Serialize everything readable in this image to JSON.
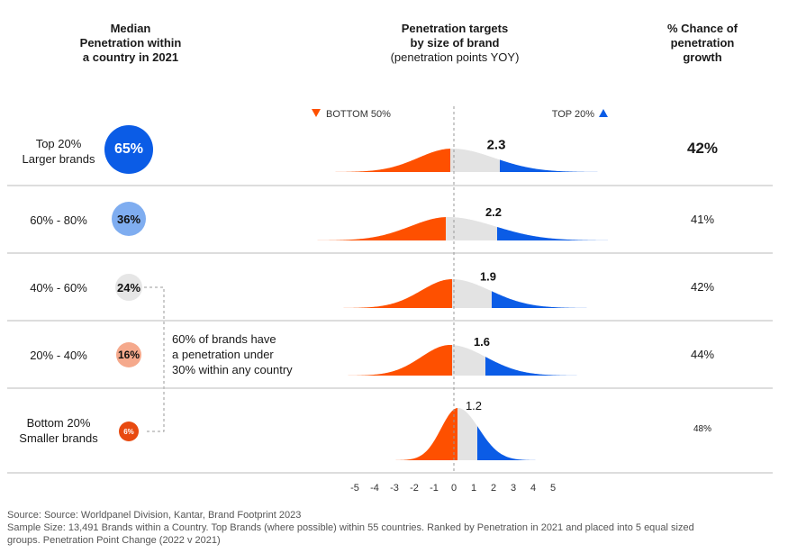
{
  "headers": {
    "left": [
      "Median",
      "Penetration within",
      "a country in 2021"
    ],
    "middle": [
      "Penetration targets",
      "by size of brand"
    ],
    "middle_sub": "(penetration points YOY)",
    "right": [
      "% Chance of",
      "penetration",
      "growth"
    ]
  },
  "legend": {
    "bottom_label": "BOTTOM 50%",
    "top_label": "TOP 20%"
  },
  "annotation": [
    "60% of brands have",
    "a penetration under",
    "30% within any country"
  ],
  "footer": {
    "line1": "Source: Source: Worldpanel Division, Kantar, Brand Footprint 2023",
    "line2": "Sample Size: 13,491 Brands within a Country. Top Brands (where possible) within 55 countries. Ranked by Penetration in 2021 and placed into 5 equal sized",
    "line3": "groups. Penetration Point Change (2022 v 2021)"
  },
  "colors": {
    "bottom": "#fe5000",
    "middle": "#e3e3e3",
    "top": "#0b5ce6",
    "bubble_1": "#0b5ce6",
    "bubble_2": "#7fadf0",
    "bubble_3": "#e6e6e6",
    "bubble_4": "#f5a98c",
    "bubble_5": "#e84a10",
    "divider": "#bbbbbb"
  },
  "chart_data": {
    "type": "area",
    "x_ticks": [
      "-5",
      "-4",
      "-3",
      "-2",
      "-1",
      "0",
      "1",
      "2",
      "3",
      "4",
      "5"
    ],
    "xlim": [
      -5,
      5
    ],
    "rows": [
      {
        "label": [
          "Top 20%",
          "Larger brands"
        ],
        "median_penetration": "65%",
        "median_value": 65,
        "bottom_cut": -0.2,
        "top_cut": 2.3,
        "target_label": "2.3",
        "chance": "42%",
        "chance_value": 42
      },
      {
        "label": [
          "60% - 80%"
        ],
        "median_penetration": "36%",
        "median_value": 36,
        "bottom_cut": -0.4,
        "top_cut": 2.2,
        "target_label": "2.2",
        "chance": "41%",
        "chance_value": 41
      },
      {
        "label": [
          "40% - 60%"
        ],
        "median_penetration": "24%",
        "median_value": 24,
        "bottom_cut": -0.1,
        "top_cut": 1.9,
        "target_label": "1.9",
        "chance": "42%",
        "chance_value": 42
      },
      {
        "label": [
          "20% - 40%"
        ],
        "median_penetration": "16%",
        "median_value": 16,
        "bottom_cut": -0.1,
        "top_cut": 1.6,
        "target_label": "1.6",
        "chance": "44%",
        "chance_value": 44
      },
      {
        "label": [
          "Bottom 20%",
          "Smaller brands"
        ],
        "median_penetration": "6%",
        "median_value": 6,
        "bottom_cut": 0.2,
        "top_cut": 1.2,
        "target_label": "1.2",
        "chance": "48%",
        "chance_value": 48
      }
    ]
  }
}
